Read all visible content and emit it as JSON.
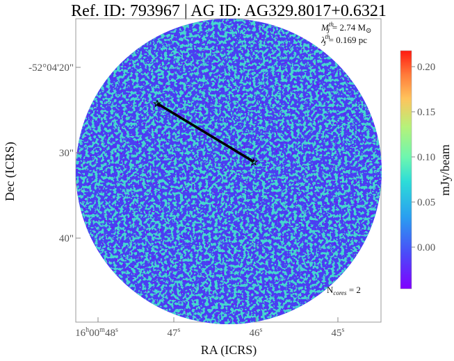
{
  "title": "Ref. ID: 793967 | AG ID: AG329.8017+0.6321",
  "annotations": {
    "jeans_mass_sym": "M",
    "jeans_mass_sub": "J",
    "jeans_mass_sup": "th",
    "jeans_mass_value": "= 2.74 M",
    "jeans_mass_unit_symbol": "⊙",
    "jeans_length_sym": "λ",
    "jeans_length_sub": "J",
    "jeans_length_sup": "th",
    "jeans_length_value": "= 0.169 pc",
    "ncores_label": "N",
    "ncores_sub": "cores",
    "ncores_value": " = 2"
  },
  "axes": {
    "xlabel": "RA (ICRS)",
    "ylabel": "Dec (ICRS)",
    "x_ticks": [
      {
        "h": "16",
        "hu": "h",
        "m": "00",
        "mu": "m",
        "s": "48",
        "su": "s"
      },
      {
        "h": "",
        "hu": "",
        "m": "",
        "mu": "",
        "s": "47",
        "su": "s"
      },
      {
        "h": "",
        "hu": "",
        "m": "",
        "mu": "",
        "s": "46",
        "su": "s"
      },
      {
        "h": "",
        "hu": "",
        "m": "",
        "mu": "",
        "s": "45",
        "su": "s"
      }
    ],
    "y_ticks": [
      "-52°04'20\"",
      "30\"",
      "40\""
    ]
  },
  "colorbar": {
    "label": "mJy/beam",
    "ticks": [
      "0.20",
      "0.15",
      "0.10",
      "0.05",
      "0.00"
    ],
    "range": [
      -0.045,
      0.22
    ],
    "colormap": "rainbow"
  },
  "image": {
    "description_colormap_dominant": [
      "#4a2ff0",
      "#3fd8d8",
      "#7af0a0"
    ],
    "markers": [
      {
        "name": "core-1",
        "symbol": "☆"
      },
      {
        "name": "core-2",
        "symbol": "☆"
      }
    ],
    "connector_color": "#000000"
  }
}
